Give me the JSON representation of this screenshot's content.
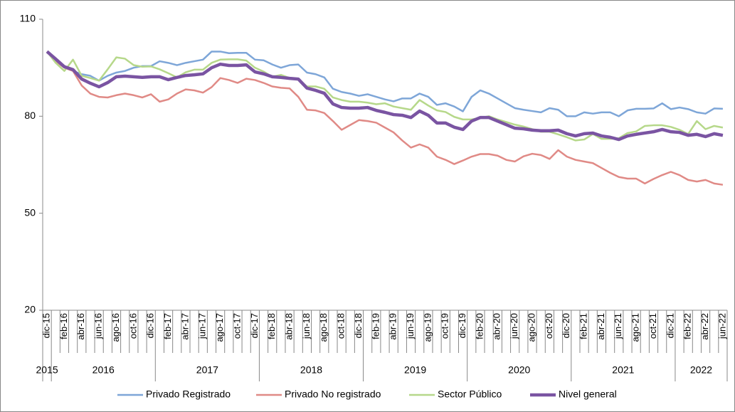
{
  "chart_data": {
    "type": "line",
    "categories": [
      "dic-15",
      null,
      "feb-16",
      null,
      "abr-16",
      null,
      "jun-16",
      null,
      "ago-16",
      null,
      "oct-16",
      null,
      "dic-16",
      null,
      "feb-17",
      null,
      "abr-17",
      null,
      "jun-17",
      null,
      "ago-17",
      null,
      "oct-17",
      null,
      "dic-17",
      null,
      "feb-18",
      null,
      "abr-18",
      null,
      "jun-18",
      null,
      "ago-18",
      null,
      "oct-18",
      null,
      "dic-18",
      null,
      "feb-19",
      null,
      "abr-19",
      null,
      "jun-19",
      null,
      "ago-19",
      null,
      "oct-19",
      null,
      "dic-19",
      null,
      "feb-20",
      null,
      "abr-20",
      null,
      "jun-20",
      null,
      "ago-20",
      null,
      "oct-20",
      null,
      "dic-20",
      null,
      "feb-21",
      null,
      "abr-21",
      null,
      "jun-21",
      null,
      "ago-21",
      null,
      "oct-21",
      null,
      "dic-21",
      null,
      "feb-22",
      null,
      "abr-22",
      null,
      "jun-22"
    ],
    "years": [
      "2015",
      "2016",
      "2017",
      "2018",
      "2019",
      "2020",
      "2021",
      "2022"
    ],
    "ylim": [
      20,
      110
    ],
    "yticks": [
      20,
      50,
      80,
      110
    ],
    "grid": false,
    "legend": "bottom",
    "series": [
      {
        "name": "Privado Registrado",
        "color": "#7ea6d8",
        "width": 2.5,
        "values": [
          100,
          97.5,
          95.5,
          94,
          93,
          92.5,
          91,
          92.5,
          93.5,
          94,
          95,
          95.5,
          95.5,
          97,
          96.5,
          95.8,
          96.5,
          97,
          97.5,
          100,
          100,
          99.5,
          99.6,
          99.6,
          97.5,
          97.3,
          96,
          95,
          95.8,
          96,
          93.5,
          93,
          92,
          88.5,
          87.5,
          87,
          86.3,
          86.8,
          86,
          85.2,
          84.6,
          85.5,
          85.5,
          87,
          86,
          83.5,
          84,
          83,
          81.5,
          86,
          88,
          87,
          85.5,
          84,
          82.5,
          82,
          81.6,
          81.2,
          82.5,
          82,
          80,
          80,
          81.2,
          80.8,
          81.2,
          81.2,
          80,
          81.8,
          82.3,
          82.3,
          82.4,
          84,
          82.2,
          82.7,
          82.2,
          81.2,
          80.8,
          82.4,
          82.3
        ]
      },
      {
        "name": "Privado No registrado",
        "color": "#e08a86",
        "width": 2.5,
        "values": [
          100,
          97,
          95,
          94,
          89.5,
          87,
          86,
          85.8,
          86.5,
          87,
          86.5,
          85.8,
          86.8,
          84.5,
          85.2,
          87,
          88.3,
          88,
          87.3,
          89,
          91.8,
          91.2,
          90.3,
          91.6,
          91.2,
          90.3,
          89.2,
          88.8,
          88.6,
          86,
          82,
          81.8,
          81,
          78.5,
          75.8,
          77.3,
          78.8,
          78.5,
          78,
          76.5,
          75,
          72.5,
          70.3,
          71.3,
          70.3,
          67.5,
          66.5,
          65.2,
          66.3,
          67.5,
          68.3,
          68.3,
          67.8,
          66.5,
          66,
          67.6,
          68.4,
          68,
          66.8,
          69.5,
          67.5,
          66.5,
          66,
          65.5,
          64,
          62.5,
          61.2,
          60.7,
          60.7,
          59.2,
          60.6,
          61.8,
          62.8,
          61.8,
          60.3,
          59.8,
          60.3,
          59.2,
          58.8
        ]
      },
      {
        "name": "Sector Público",
        "color": "#b6d88a",
        "width": 2.5,
        "values": [
          100,
          96.5,
          94,
          97.5,
          92.5,
          91.8,
          91,
          94.5,
          98.2,
          97.8,
          95.8,
          95.3,
          95.4,
          94.5,
          93.3,
          92,
          93.6,
          94.4,
          94.4,
          96.5,
          97.5,
          97.6,
          97.6,
          97.2,
          95,
          93.8,
          92.2,
          92.8,
          91.8,
          91.5,
          89.2,
          89.2,
          88.5,
          85.8,
          85,
          84.5,
          84.5,
          84.2,
          83.7,
          84,
          83,
          82.5,
          82,
          85,
          83.3,
          81.8,
          81.3,
          79.8,
          79,
          79,
          79.5,
          80,
          79,
          78.2,
          77.4,
          76.8,
          76,
          75.2,
          75.2,
          74.4,
          73.5,
          72.5,
          72.8,
          74.5,
          73,
          73,
          73.2,
          74.8,
          75.3,
          77,
          77.2,
          77.2,
          76.7,
          75.8,
          74.5,
          78.5,
          76,
          77,
          76.5
        ]
      },
      {
        "name": "Nivel general",
        "color": "#7a54a2",
        "width": 4.5,
        "values": [
          100,
          97.7,
          95.3,
          94.4,
          91.5,
          90.2,
          89.1,
          90.4,
          92.2,
          92.4,
          92.2,
          92,
          92.2,
          92.2,
          91.3,
          92,
          92.6,
          92.8,
          93.1,
          95,
          96.1,
          95.7,
          95.7,
          95.9,
          93.7,
          93.1,
          92.2,
          92,
          91.7,
          91.5,
          88.7,
          88,
          87.1,
          83.8,
          82.7,
          82.5,
          82.5,
          82.7,
          81.8,
          81.2,
          80.5,
          80.3,
          79.6,
          81.6,
          80.3,
          77.9,
          77.9,
          76.6,
          75.9,
          78.5,
          79.6,
          79.6,
          78.5,
          77.4,
          76.3,
          76.1,
          75.7,
          75.5,
          75.5,
          75.7,
          74.6,
          73.9,
          74.6,
          74.8,
          73.9,
          73.5,
          72.8,
          73.9,
          74.4,
          74.8,
          75.2,
          75.9,
          75.2,
          75,
          74.1,
          74.4,
          73.7,
          74.6,
          74.1
        ]
      }
    ]
  }
}
